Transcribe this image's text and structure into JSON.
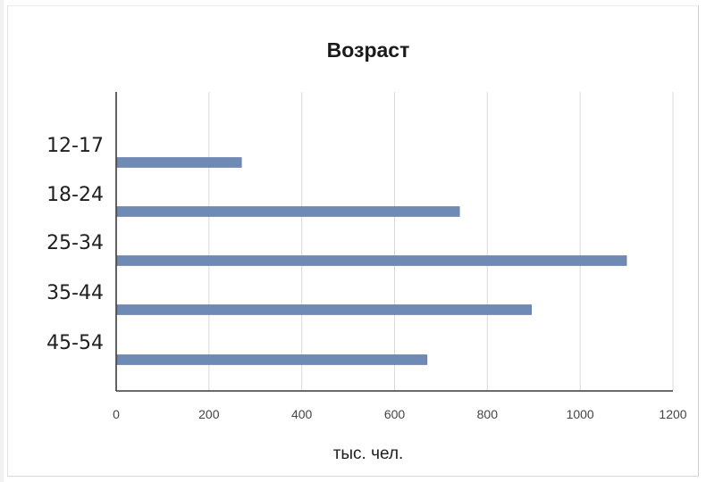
{
  "chart_data": {
    "type": "bar",
    "orientation": "horizontal",
    "title": "Возраст",
    "xlabel": "тыс. чел.",
    "ylabel": "",
    "categories": [
      "12-17",
      "18-24",
      "25-34",
      "35-44",
      "45-54"
    ],
    "values": [
      270,
      740,
      1100,
      895,
      670
    ],
    "xlim": [
      0,
      1200
    ],
    "xticks": [
      0,
      200,
      400,
      600,
      800,
      1000,
      1200
    ],
    "grid": "vertical",
    "legend": "none",
    "bar_color": "#6f8ab4"
  }
}
